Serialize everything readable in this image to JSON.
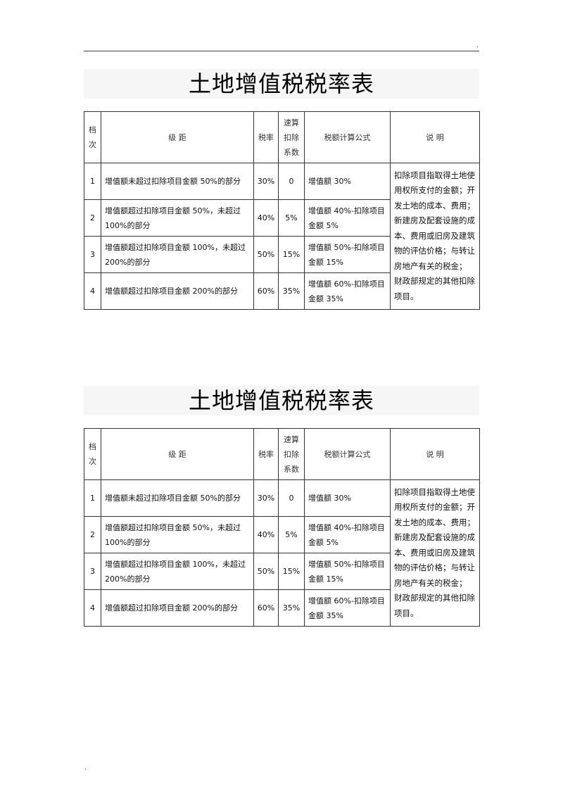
{
  "page_marks": {
    "top_dot": ".",
    "bottom_dot": "."
  },
  "tables": [
    {
      "title": "土地增值税税率表",
      "headers": {
        "grade": "档次",
        "bracket": "级 距",
        "rate": "税率",
        "deduction": "速算扣除系数",
        "formula": "税额计算公式",
        "note": "说 明"
      },
      "rows": [
        {
          "grade": "1",
          "bracket": "增值额未超过扣除项目金额 50%的部分",
          "rate": "30%",
          "deduction": "0",
          "formula": "增值额 30%"
        },
        {
          "grade": "2",
          "bracket": "增值额超过扣除项目金额 50%，未超过 100%的部分",
          "rate": "40%",
          "deduction": "5%",
          "formula": "增值额 40%-扣除项目金额 5%"
        },
        {
          "grade": "3",
          "bracket": "增值额超过扣除项目金额 100%，未超过 200%的部分",
          "rate": "50%",
          "deduction": "15%",
          "formula": "增值额 50%-扣除项目金额 15%"
        },
        {
          "grade": "4",
          "bracket": "增值额超过扣除项目金额 200%的部分",
          "rate": "60%",
          "deduction": "35%",
          "formula": "增值额 60%-扣除项目金额 35%"
        }
      ],
      "note": "扣除项目指取得土地使用权所支付的金额；开发土地的成本、费用；新建房及配套设施的成本、费用或旧房及建筑物的评估价格；与转让房地产有关的税金； 财政部规定的其他扣除项目。"
    },
    {
      "title": "土地增值税税率表",
      "headers": {
        "grade": "档次",
        "bracket": "级 距",
        "rate": "税率",
        "deduction": "速算扣除系数",
        "formula": "税额计算公式",
        "note": "说 明"
      },
      "rows": [
        {
          "grade": "1",
          "bracket": "增值额未超过扣除项目金额 50%的部分",
          "rate": "30%",
          "deduction": "0",
          "formula": "增值额 30%"
        },
        {
          "grade": "2",
          "bracket": "增值额超过扣除项目金额 50%，未超过 100%的部分",
          "rate": "40%",
          "deduction": "5%",
          "formula": "增值额 40%-扣除项目金额 5%"
        },
        {
          "grade": "3",
          "bracket": "增值额超过扣除项目金额 100%，未超过 200%的部分",
          "rate": "50%",
          "deduction": "15%",
          "formula": "增值额 50%-扣除项目金额 15%"
        },
        {
          "grade": "4",
          "bracket": "增值额超过扣除项目金额 200%的部分",
          "rate": "60%",
          "deduction": "35%",
          "formula": "增值额 60%-扣除项目金额 35%"
        }
      ],
      "note": "扣除项目指取得土地使用权所支付的金额；开发土地的成本、费用；新建房及配套设施的成本、费用或旧房及建筑物的评估价格；与转让房地产有关的税金； 财政部规定的其他扣除项目。"
    }
  ]
}
